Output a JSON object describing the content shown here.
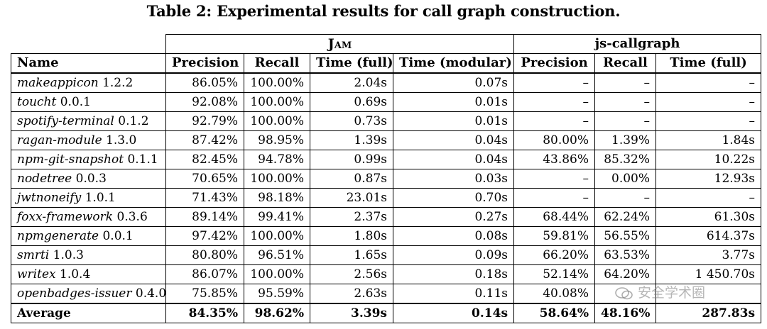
{
  "caption": "Table 2: Experimental results for call graph construction.",
  "groups": {
    "jam": "Jam",
    "jscg": "js-callgraph"
  },
  "columns": [
    "Name",
    "Precision",
    "Recall",
    "Time (full)",
    "Time (modular)",
    "Precision",
    "Recall",
    "Time (full)"
  ],
  "rows": [
    {
      "name": "makeappicon",
      "version": "1.2.2",
      "cells": [
        "86.05%",
        "100.00%",
        "2.04s",
        "0.07s",
        "–",
        "–",
        "–"
      ]
    },
    {
      "name": "toucht",
      "version": "0.0.1",
      "cells": [
        "92.08%",
        "100.00%",
        "0.69s",
        "0.01s",
        "–",
        "–",
        "–"
      ]
    },
    {
      "name": "spotify-terminal",
      "version": "0.1.2",
      "cells": [
        "92.79%",
        "100.00%",
        "0.73s",
        "0.01s",
        "–",
        "–",
        "–"
      ]
    },
    {
      "name": "ragan-module",
      "version": "1.3.0",
      "cells": [
        "87.42%",
        "98.95%",
        "1.39s",
        "0.04s",
        "80.00%",
        "1.39%",
        "1.84s"
      ]
    },
    {
      "name": "npm-git-snapshot",
      "version": "0.1.1",
      "cells": [
        "82.45%",
        "94.78%",
        "0.99s",
        "0.04s",
        "43.86%",
        "85.32%",
        "10.22s"
      ]
    },
    {
      "name": "nodetree",
      "version": "0.0.3",
      "cells": [
        "70.65%",
        "100.00%",
        "0.87s",
        "0.03s",
        "–",
        "0.00%",
        "12.93s"
      ]
    },
    {
      "name": "jwtnoneify",
      "version": "1.0.1",
      "cells": [
        "71.43%",
        "98.18%",
        "23.01s",
        "0.70s",
        "–",
        "–",
        "–"
      ]
    },
    {
      "name": "foxx-framework",
      "version": "0.3.6",
      "cells": [
        "89.14%",
        "99.41%",
        "2.37s",
        "0.27s",
        "68.44%",
        "62.24%",
        "61.30s"
      ]
    },
    {
      "name": "npmgenerate",
      "version": "0.0.1",
      "cells": [
        "97.42%",
        "100.00%",
        "1.80s",
        "0.08s",
        "59.81%",
        "56.55%",
        "614.37s"
      ]
    },
    {
      "name": "smrti",
      "version": "1.0.3",
      "cells": [
        "80.80%",
        "96.51%",
        "1.65s",
        "0.09s",
        "66.20%",
        "63.53%",
        "3.77s"
      ]
    },
    {
      "name": "writex",
      "version": "1.0.4",
      "cells": [
        "86.07%",
        "100.00%",
        "2.56s",
        "0.18s",
        "52.14%",
        "64.20%",
        "1 450.70s"
      ]
    },
    {
      "name": "openbadges-issuer",
      "version": "0.4.0",
      "cells": [
        "75.85%",
        "95.59%",
        "2.63s",
        "0.11s",
        "40.08%",
        "",
        ""
      ]
    }
  ],
  "average": {
    "label": "Average",
    "cells": [
      "84.35%",
      "98.62%",
      "3.39s",
      "0.14s",
      "58.64%",
      "48.16%",
      "287.83s"
    ]
  },
  "watermark": {
    "text": "安全学术圈",
    "icon": "wechat-icon"
  }
}
